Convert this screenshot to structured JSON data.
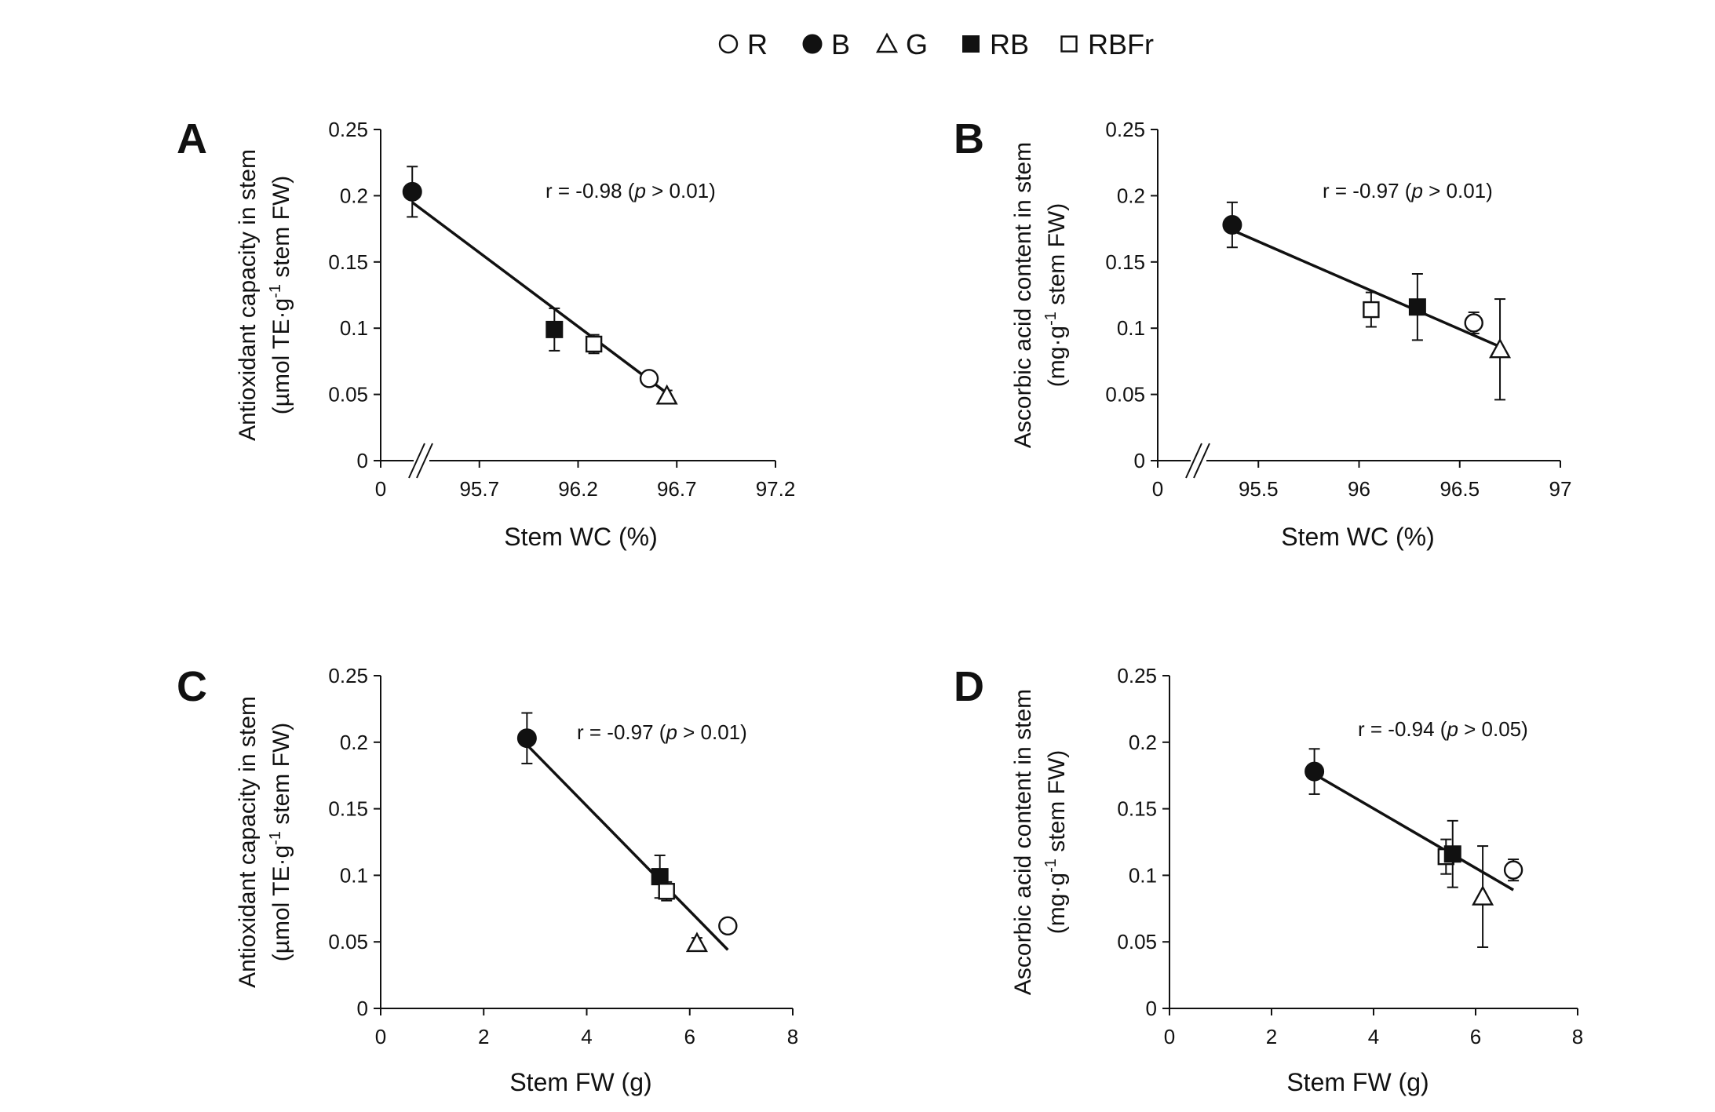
{
  "legend": [
    {
      "key": "R",
      "label": "R",
      "marker": "circle-open"
    },
    {
      "key": "B",
      "label": "B",
      "marker": "circle-filled"
    },
    {
      "key": "G",
      "label": "G",
      "marker": "triangle-open"
    },
    {
      "key": "RB",
      "label": "RB",
      "marker": "square-filled"
    },
    {
      "key": "RBFr",
      "label": "RBFr",
      "marker": "square-open"
    }
  ],
  "chart_data": [
    {
      "id": "A",
      "type": "scatter",
      "panel_label": "A",
      "xlabel": "Stem WC (%)",
      "ylabel_line1": "Antioxidant capacity in stem",
      "ylabel_line2_pre": "(µmol TE·g",
      "ylabel_sup": "-1",
      "ylabel_line2_post": " stem FW)",
      "axis_break": true,
      "x_tick_labels": [
        "0",
        "95.7",
        "96.2",
        "96.7",
        "97.2"
      ],
      "x_tick_values": [
        null,
        95.7,
        96.2,
        96.7,
        97.2
      ],
      "xlim": [
        95.2,
        97.2
      ],
      "y_tick_labels": [
        "0",
        "0.05",
        "0.1",
        "0.15",
        "0.2",
        "0.25"
      ],
      "y_tick_values": [
        0,
        0.05,
        0.1,
        0.15,
        0.2,
        0.25
      ],
      "ylim": [
        0,
        0.25
      ],
      "correlation": {
        "r_text": "r = -0.98 (",
        "p_var": "p",
        "p_text": " > 0.01)"
      },
      "points": [
        {
          "series": "B",
          "x": 95.36,
          "y": 0.203,
          "err": 0.019
        },
        {
          "series": "RB",
          "x": 96.08,
          "y": 0.099,
          "err": 0.016
        },
        {
          "series": "RBFr",
          "x": 96.28,
          "y": 0.088,
          "err": 0.007
        },
        {
          "series": "R",
          "x": 96.56,
          "y": 0.062,
          "err": 0.005
        },
        {
          "series": "G",
          "x": 96.65,
          "y": 0.049,
          "err": 0.004
        }
      ],
      "fit_line": {
        "x": [
          95.36,
          96.65
        ],
        "y": [
          0.195,
          0.051
        ]
      }
    },
    {
      "id": "B",
      "type": "scatter",
      "panel_label": "B",
      "xlabel": "Stem WC (%)",
      "ylabel_line1": "Ascorbic acid content in stem",
      "ylabel_line2_pre": "(mg·g",
      "ylabel_sup": "-1",
      "ylabel_line2_post": " stem FW)",
      "axis_break": true,
      "x_tick_labels": [
        "0",
        "95.5",
        "96",
        "96.5",
        "97"
      ],
      "x_tick_values": [
        null,
        95.5,
        96.0,
        96.5,
        97.0
      ],
      "xlim": [
        95.0,
        97.0
      ],
      "y_tick_labels": [
        "0",
        "0.05",
        "0.1",
        "0.15",
        "0.2",
        "0.25"
      ],
      "y_tick_values": [
        0,
        0.05,
        0.1,
        0.15,
        0.2,
        0.25
      ],
      "ylim": [
        0,
        0.25
      ],
      "correlation": {
        "r_text": "r = -0.97 (",
        "p_var": "p",
        "p_text": " > 0.01)"
      },
      "points": [
        {
          "series": "B",
          "x": 95.37,
          "y": 0.178,
          "err": 0.017
        },
        {
          "series": "RBFr",
          "x": 96.06,
          "y": 0.114,
          "err": 0.013
        },
        {
          "series": "RB",
          "x": 96.29,
          "y": 0.116,
          "err": 0.025
        },
        {
          "series": "R",
          "x": 96.57,
          "y": 0.104,
          "err": 0.008
        },
        {
          "series": "G",
          "x": 96.7,
          "y": 0.084,
          "err": 0.038
        }
      ],
      "fit_line": {
        "x": [
          95.37,
          96.7
        ],
        "y": [
          0.174,
          0.086
        ]
      }
    },
    {
      "id": "C",
      "type": "scatter",
      "panel_label": "C",
      "xlabel": "Stem FW (g)",
      "ylabel_line1": "Antioxidant capacity in stem",
      "ylabel_line2_pre": "(µmol TE·g",
      "ylabel_sup": "-1",
      "ylabel_line2_post": " stem FW)",
      "axis_break": false,
      "x_tick_labels": [
        "0",
        "2",
        "4",
        "6",
        "8"
      ],
      "x_tick_values": [
        0,
        2,
        4,
        6,
        8
      ],
      "xlim": [
        0,
        8
      ],
      "y_tick_labels": [
        "0",
        "0.05",
        "0.1",
        "0.15",
        "0.2",
        "0.25"
      ],
      "y_tick_values": [
        0,
        0.05,
        0.1,
        0.15,
        0.2,
        0.25
      ],
      "ylim": [
        0,
        0.25
      ],
      "correlation": {
        "r_text": "r = -0.97 (",
        "p_var": "p",
        "p_text": " > 0.01)"
      },
      "points": [
        {
          "series": "B",
          "x": 2.84,
          "y": 0.203,
          "err": 0.019
        },
        {
          "series": "RB",
          "x": 5.42,
          "y": 0.099,
          "err": 0.016
        },
        {
          "series": "RBFr",
          "x": 5.55,
          "y": 0.088,
          "err": 0.007
        },
        {
          "series": "G",
          "x": 6.14,
          "y": 0.049,
          "err": 0.004
        },
        {
          "series": "R",
          "x": 6.74,
          "y": 0.062,
          "err": 0.005
        }
      ],
      "fit_line": {
        "x": [
          2.84,
          6.74
        ],
        "y": [
          0.198,
          0.044
        ]
      }
    },
    {
      "id": "D",
      "type": "scatter",
      "panel_label": "D",
      "xlabel": "Stem FW (g)",
      "ylabel_line1": "Ascorbic acid content in stem",
      "ylabel_line2_pre": "(mg·g",
      "ylabel_sup": "-1",
      "ylabel_line2_post": " stem FW)",
      "axis_break": false,
      "x_tick_labels": [
        "0",
        "2",
        "4",
        "6",
        "8"
      ],
      "x_tick_values": [
        0,
        2,
        4,
        6,
        8
      ],
      "xlim": [
        0,
        8
      ],
      "y_tick_labels": [
        "0",
        "0.05",
        "0.1",
        "0.15",
        "0.2",
        "0.25"
      ],
      "y_tick_values": [
        0,
        0.05,
        0.1,
        0.15,
        0.2,
        0.25
      ],
      "ylim": [
        0,
        0.25
      ],
      "correlation": {
        "r_text": "r = -0.94 (",
        "p_var": "p",
        "p_text": " > 0.05)"
      },
      "points": [
        {
          "series": "B",
          "x": 2.84,
          "y": 0.178,
          "err": 0.017
        },
        {
          "series": "RBFr",
          "x": 5.42,
          "y": 0.114,
          "err": 0.013
        },
        {
          "series": "RB",
          "x": 5.55,
          "y": 0.116,
          "err": 0.025
        },
        {
          "series": "G",
          "x": 6.14,
          "y": 0.084,
          "err": 0.038
        },
        {
          "series": "R",
          "x": 6.74,
          "y": 0.104,
          "err": 0.008
        }
      ],
      "fit_line": {
        "x": [
          2.84,
          6.74
        ],
        "y": [
          0.176,
          0.089
        ]
      }
    }
  ]
}
